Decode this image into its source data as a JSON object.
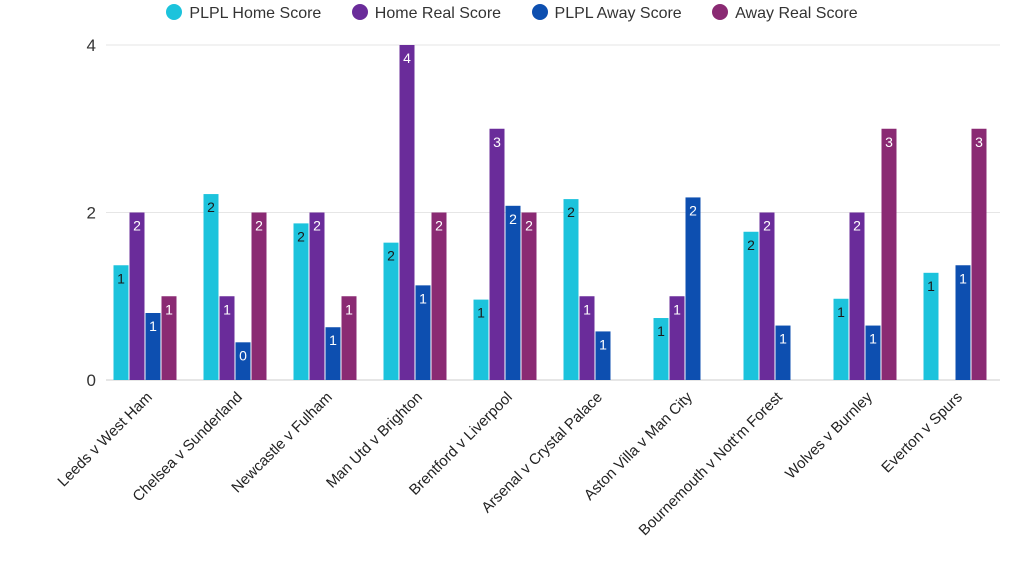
{
  "chart_data": {
    "type": "bar",
    "title": "",
    "xlabel": "",
    "ylabel": "",
    "ylim": [
      0,
      4
    ],
    "y_ticks": [
      "0",
      "2",
      "4"
    ],
    "legend_position": "top-center",
    "categories": [
      "Leeds v West Ham",
      "Chelsea v Sunderland",
      "Newcastle v Fulham",
      "Man Utd v Brighton",
      "Brentford v Liverpool",
      "Arsenal v Crystal Palace",
      "Aston Villa v Man City",
      "Bournemouth v Nott'm Forest",
      "Wolves v Burnley",
      "Everton v Spurs"
    ],
    "series": [
      {
        "name": "PLPL Home Score",
        "color": "#1CC3DC",
        "values": [
          1.37,
          2.22,
          1.87,
          1.64,
          0.96,
          2.16,
          0.74,
          1.77,
          0.97,
          1.28
        ],
        "labels": [
          "1",
          "2",
          "2",
          "2",
          "1",
          "2",
          "1",
          "2",
          "1",
          "1"
        ]
      },
      {
        "name": "Home Real Score",
        "color": "#6A2C9A",
        "values": [
          2,
          1,
          2,
          4,
          3,
          1,
          1,
          2,
          2,
          0
        ],
        "labels": [
          "2",
          "1",
          "2",
          "4",
          "3",
          "1",
          "1",
          "2",
          "2",
          ""
        ]
      },
      {
        "name": "PLPL Away Score",
        "color": "#0D4FB0",
        "values": [
          0.8,
          0.45,
          0.63,
          1.13,
          2.08,
          0.58,
          2.18,
          0.65,
          0.65,
          1.37
        ],
        "labels": [
          "1",
          "0",
          "1",
          "1",
          "2",
          "1",
          "2",
          "1",
          "1",
          "1"
        ]
      },
      {
        "name": "Away Real Score",
        "color": "#8A2A73",
        "values": [
          1,
          2,
          1,
          2,
          2,
          0,
          0,
          0,
          3,
          3
        ],
        "labels": [
          "1",
          "2",
          "1",
          "2",
          "2",
          "",
          "",
          "",
          "3",
          "3"
        ]
      }
    ]
  }
}
